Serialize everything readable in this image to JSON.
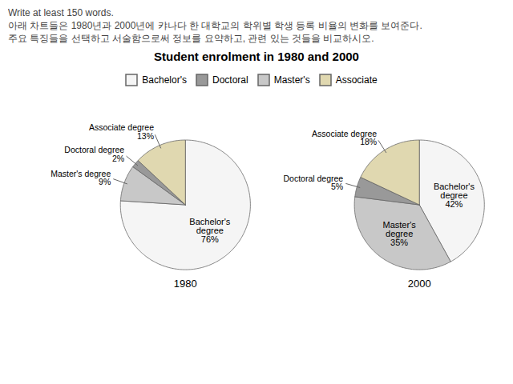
{
  "chart_data": {
    "type": "pie",
    "title": "Student enrolment in 1980 and 2000",
    "subtitle": [
      "Write at least 150 words.",
      "아래 차트들은 1980년과 2000년에 캬나다 한 대학교의 학위별 학생 등록 비율의 변화를 보여준다.",
      "주요 특징들을 선택하고 서술함으로써 정보를 요약하고, 관련 있는 것들을 비교하시오."
    ],
    "pies": [
      {
        "name": "1980",
        "categories": [
          "Bachelor's degree",
          "Master's degree",
          "Doctoral degree",
          "Associate degree"
        ],
        "values": [
          76,
          9,
          2,
          13
        ],
        "value_labels": [
          "76%",
          "9%",
          "2%",
          "13%"
        ],
        "colors": [
          "#f5f5f5",
          "#c8c8c8",
          "#999999",
          "#e0d8b0"
        ]
      },
      {
        "name": "2000",
        "categories": [
          "Bachelor's degree",
          "Master's degree",
          "Doctoral degree",
          "Associate degree"
        ],
        "values": [
          42,
          35,
          5,
          18
        ],
        "value_labels": [
          "42%",
          "35%",
          "5%",
          "18%"
        ],
        "colors": [
          "#f5f5f5",
          "#c8c8c8",
          "#999999",
          "#e0d8b0"
        ]
      }
    ],
    "series": [
      {
        "name": "Bachelor's",
        "color": "#f5f5f5"
      },
      {
        "name": "Doctoral",
        "color": "#999999"
      },
      {
        "name": "Master's",
        "color": "#c8c8c8"
      },
      {
        "name": "Associate",
        "color": "#e0d8b0"
      }
    ],
    "legend": "top"
  }
}
